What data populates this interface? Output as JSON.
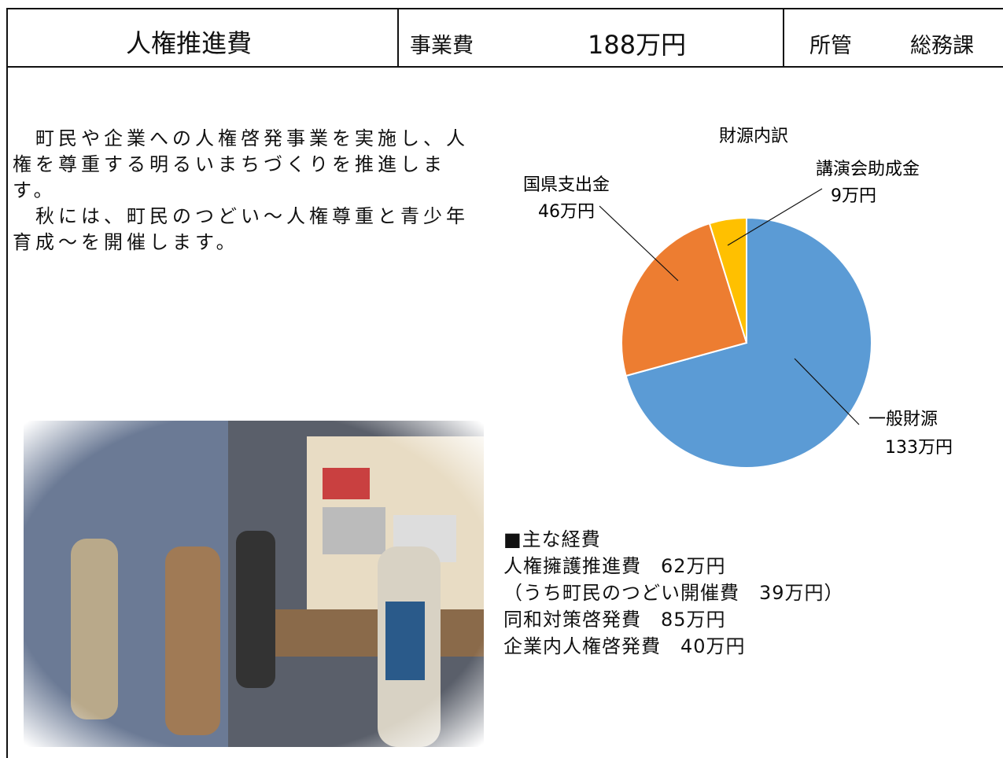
{
  "header": {
    "title": "人権推進費",
    "cost_label": "事業費",
    "cost": "188万円",
    "dept_label": "所管",
    "dept": "総務課"
  },
  "description": [
    "　町民や企業への人権啓発事業を実施し、人権を尊重する明るいまちづくりを推進します。",
    "　秋には、町民のつどい～人権尊重と青少年育成～を開催します。"
  ],
  "chart_data": {
    "type": "pie",
    "title": "財源内訳",
    "categories": [
      "一般財源",
      "国県支出金",
      "講演会助成金"
    ],
    "values": [
      133,
      46,
      9
    ],
    "value_labels": [
      "133万円",
      "46万円",
      "9万円"
    ],
    "colors": [
      "#5b9bd5",
      "#ed7d31",
      "#ffc000"
    ]
  },
  "expenses": {
    "heading": "■主な経費",
    "items": [
      "人権擁護推進費　62万円",
      "（うち町民のつどい開催費　39万円）",
      "同和対策啓発費　85万円",
      "企業内人権啓発費　40万円"
    ]
  }
}
